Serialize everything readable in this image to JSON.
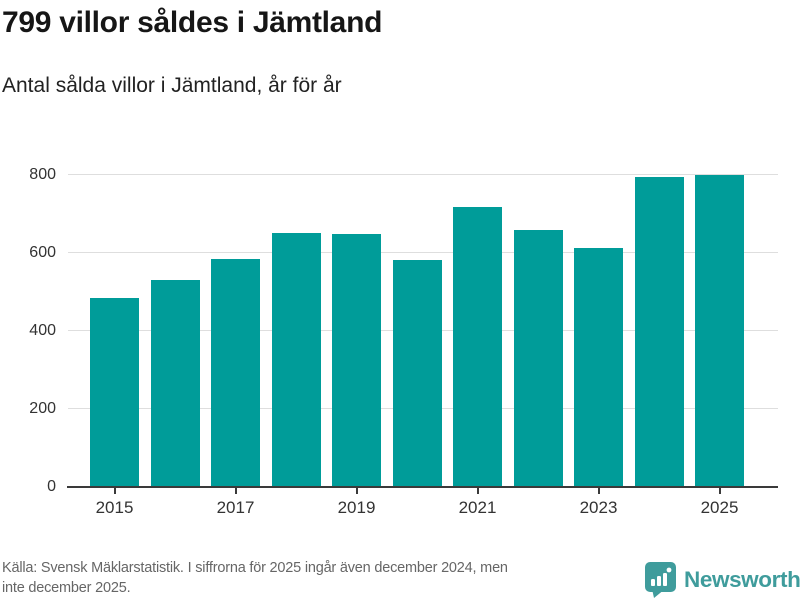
{
  "chart_data": {
    "type": "bar",
    "title": "799 villor såldes i Jämtland",
    "subtitle": "Antal sålda villor i Jämtland, år för år",
    "categories": [
      "2015",
      "2016",
      "2017",
      "2018",
      "2019",
      "2020",
      "2021",
      "2022",
      "2023",
      "2024",
      "2025"
    ],
    "values": [
      485,
      530,
      584,
      650,
      648,
      582,
      717,
      658,
      613,
      795,
      799
    ],
    "xlabel": "",
    "ylabel": "",
    "ylim": [
      0,
      800
    ],
    "yticks": [
      0,
      200,
      400,
      600,
      800
    ],
    "xtick_labels": [
      "2015",
      "2017",
      "2019",
      "2021",
      "2023",
      "2025"
    ],
    "xtick_indices": [
      0,
      2,
      4,
      6,
      8,
      10
    ],
    "grid": "horizontal",
    "legend": "none"
  },
  "colors": {
    "background": "#ffffff",
    "bar": "#009c99",
    "axis": "#3a3a3a",
    "gridline": "#dedede",
    "title_text": "#161616",
    "subtitle_text": "#222222",
    "tick_text": "#333333",
    "footer_text": "#666666",
    "logo_teal": "#3f9c9c"
  },
  "footer": {
    "source_line1": "Källa: Svensk Mäklarstatistik. I siffrorna för 2025 ingår även december 2024, men",
    "source_line2": "inte december 2025.",
    "logo_text": "Newsworthy"
  }
}
